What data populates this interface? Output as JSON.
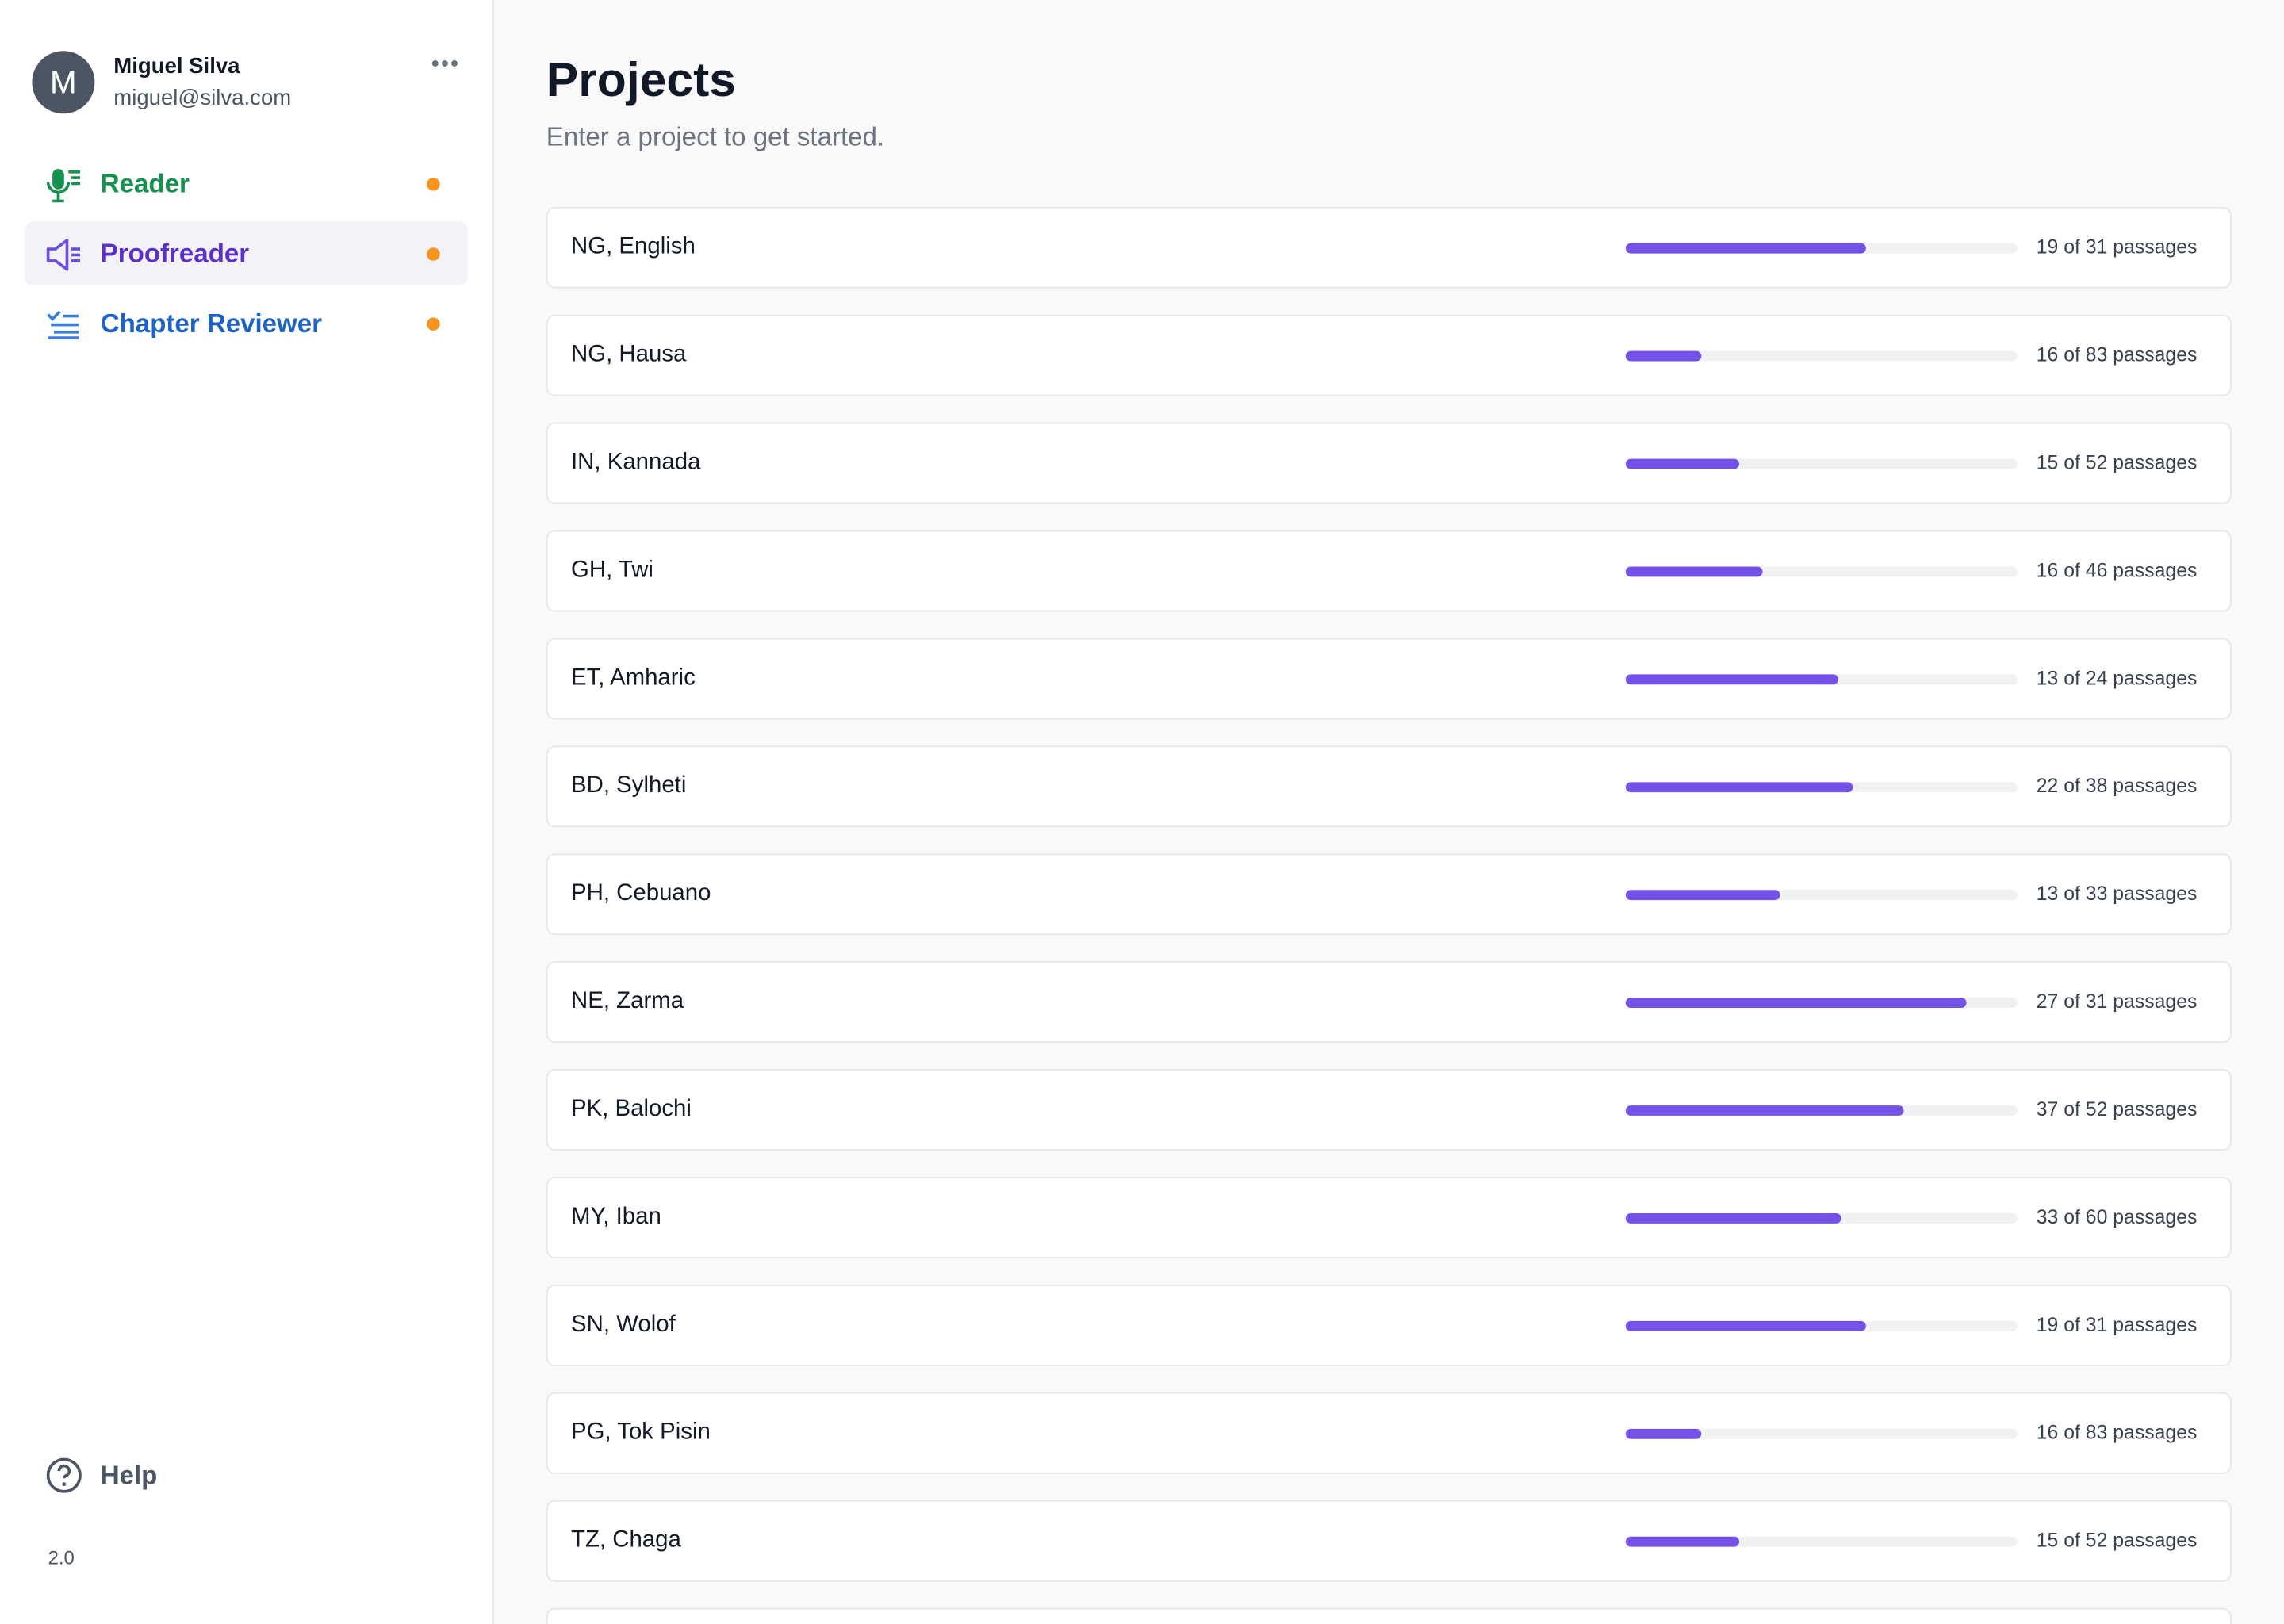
{
  "user": {
    "initial": "M",
    "name": "Miguel Silva",
    "email": "miguel@silva.com"
  },
  "nav": [
    {
      "label": "Reader"
    },
    {
      "label": "Proofreader"
    },
    {
      "label": "Chapter Reviewer"
    }
  ],
  "help": "Help",
  "version": "2.0",
  "header": {
    "title": "Projects",
    "subtitle": "Enter a project to get started."
  },
  "projects": [
    {
      "name": "NG, English",
      "completed": 19,
      "total": 31,
      "label": "19 of 31 passages"
    },
    {
      "name": "NG, Hausa",
      "completed": 16,
      "total": 83,
      "label": "16 of 83 passages"
    },
    {
      "name": "IN, Kannada",
      "completed": 15,
      "total": 52,
      "label": "15 of 52 passages"
    },
    {
      "name": "GH, Twi",
      "completed": 16,
      "total": 46,
      "label": "16 of 46 passages"
    },
    {
      "name": "ET, Amharic",
      "completed": 13,
      "total": 24,
      "label": "13 of 24 passages"
    },
    {
      "name": "BD, Sylheti",
      "completed": 22,
      "total": 38,
      "label": "22 of 38 passages"
    },
    {
      "name": "PH, Cebuano",
      "completed": 13,
      "total": 33,
      "label": "13 of 33 passages"
    },
    {
      "name": "NE, Zarma",
      "completed": 27,
      "total": 31,
      "label": "27 of 31 passages"
    },
    {
      "name": "PK, Balochi",
      "completed": 37,
      "total": 52,
      "label": "37 of 52 passages"
    },
    {
      "name": "MY, Iban",
      "completed": 33,
      "total": 60,
      "label": "33 of 60 passages"
    },
    {
      "name": "SN, Wolof",
      "completed": 19,
      "total": 31,
      "label": "19 of 31 passages"
    },
    {
      "name": "PG, Tok Pisin",
      "completed": 16,
      "total": 83,
      "label": "16 of 83 passages"
    },
    {
      "name": "TZ, Chaga",
      "completed": 15,
      "total": 52,
      "label": "15 of 52 passages"
    }
  ]
}
